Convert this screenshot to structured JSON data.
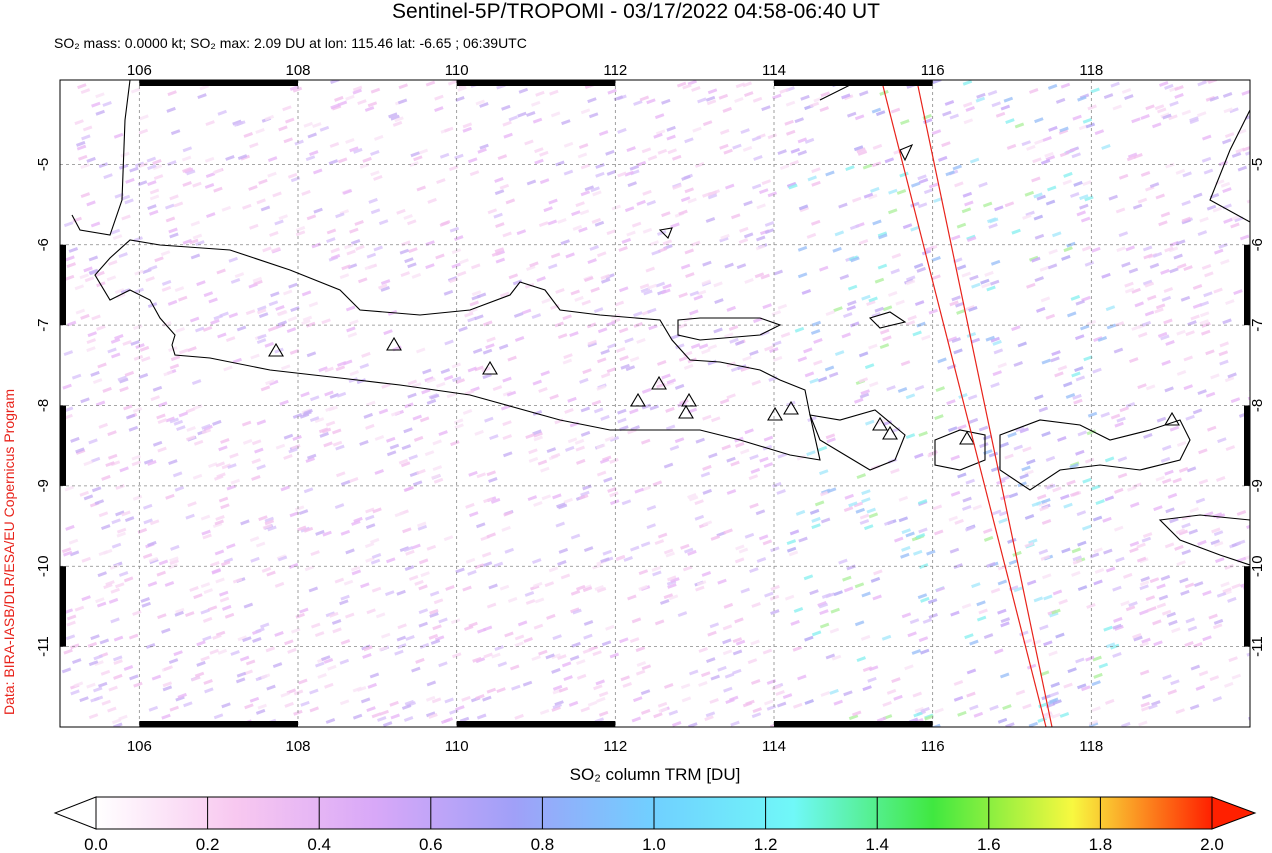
{
  "title": "Sentinel-5P/TROPOMI - 03/17/2022 04:58-06:40 UT",
  "subtitle": "SO₂ mass: 0.0000 kt; SO₂ max: 2.09 DU at lon: 115.46 lat: -6.65 ; 06:39UTC",
  "credit": "Data: BIRA-IASB/DLR/ESA/EU Copernicus Program",
  "map": {
    "xlim": [
      105,
      120
    ],
    "ylim": [
      -12,
      -3.95
    ],
    "xticks": [
      106,
      108,
      110,
      112,
      114,
      116,
      118
    ],
    "yticks": [
      -5,
      -6,
      -7,
      -8,
      -9,
      -10,
      -11
    ],
    "grid": true
  },
  "colorbar": {
    "label": "SO₂ column TRM [DU]",
    "lim": [
      0,
      2
    ],
    "colors": [
      "#ffffff",
      "#f8c8f0",
      "#d8a8f8",
      "#a0a0f8",
      "#70d0ff",
      "#70f8f8",
      "#40e840",
      "#f8f840",
      "#ff2000"
    ],
    "ticks": [
      {
        "value": 0,
        "label": "0.0"
      },
      {
        "value": 0.2,
        "label": "0.2"
      },
      {
        "value": 0.4,
        "label": "0.4"
      },
      {
        "value": 0.6,
        "label": "0.6"
      },
      {
        "value": 0.8,
        "label": "0.8"
      },
      {
        "value": 1,
        "label": "1.0"
      },
      {
        "value": 1.2,
        "label": "1.2"
      },
      {
        "value": 1.4,
        "label": "1.4"
      },
      {
        "value": 1.6,
        "label": "1.6"
      },
      {
        "value": 1.8,
        "label": "1.8"
      },
      {
        "value": 2,
        "label": "2.0"
      }
    ]
  }
}
